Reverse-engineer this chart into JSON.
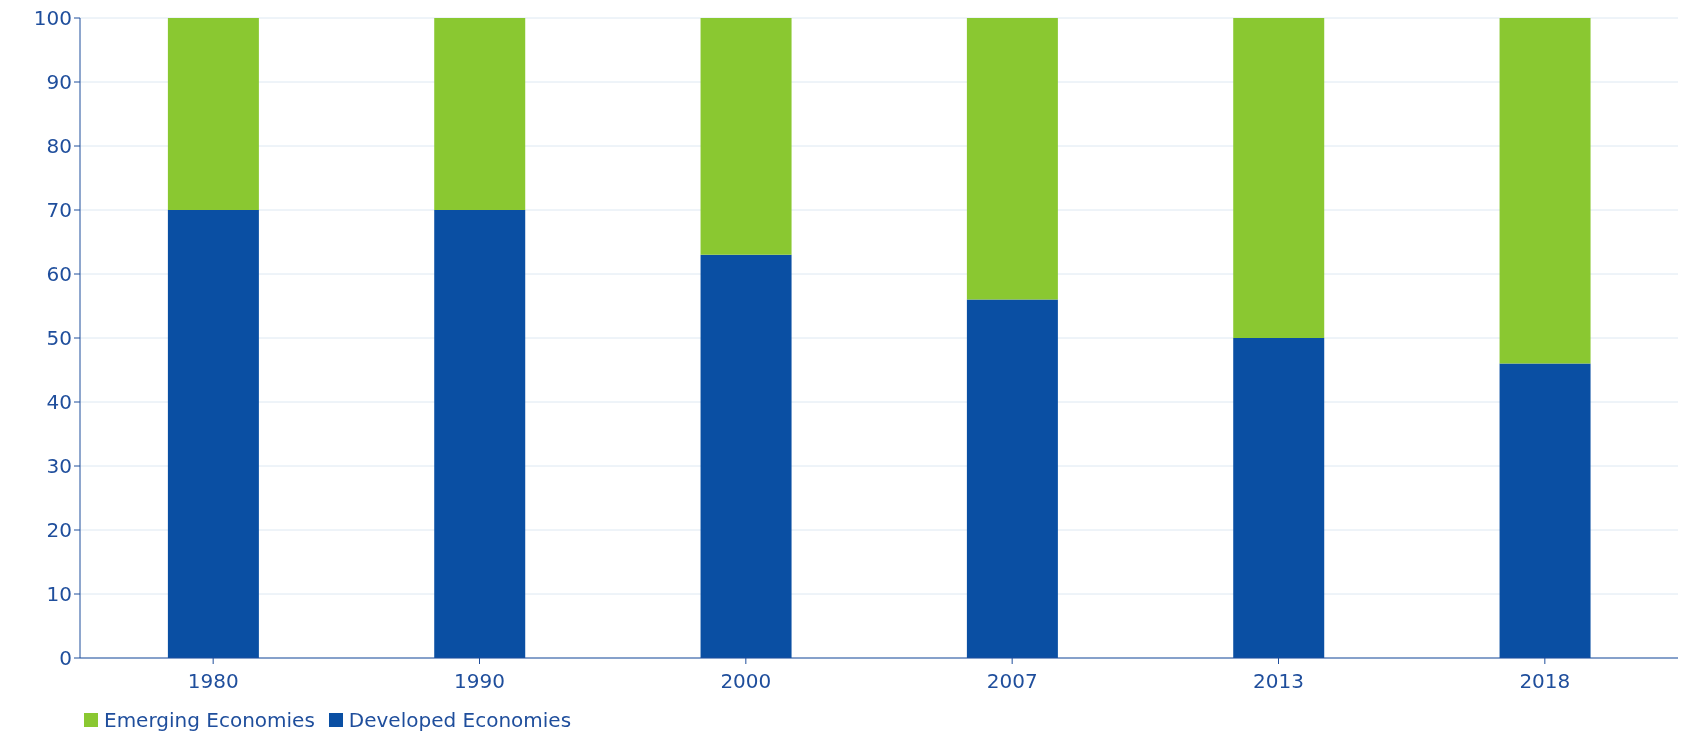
{
  "chart_data": {
    "type": "bar",
    "stacked": true,
    "categories": [
      "1980",
      "1990",
      "2000",
      "2007",
      "2013",
      "2018"
    ],
    "series": [
      {
        "name": "Developed Economies",
        "color": "#0a4fa3",
        "values": [
          70,
          70,
          63,
          56,
          50,
          46
        ]
      },
      {
        "name": "Emerging Economies",
        "color": "#8ac831",
        "values": [
          30,
          30,
          37,
          44,
          50,
          54
        ]
      }
    ],
    "ylim": [
      0,
      100
    ],
    "yticks": [
      0,
      10,
      20,
      30,
      40,
      50,
      60,
      70,
      80,
      90,
      100
    ],
    "grid": "y",
    "legend": "bottom left"
  }
}
